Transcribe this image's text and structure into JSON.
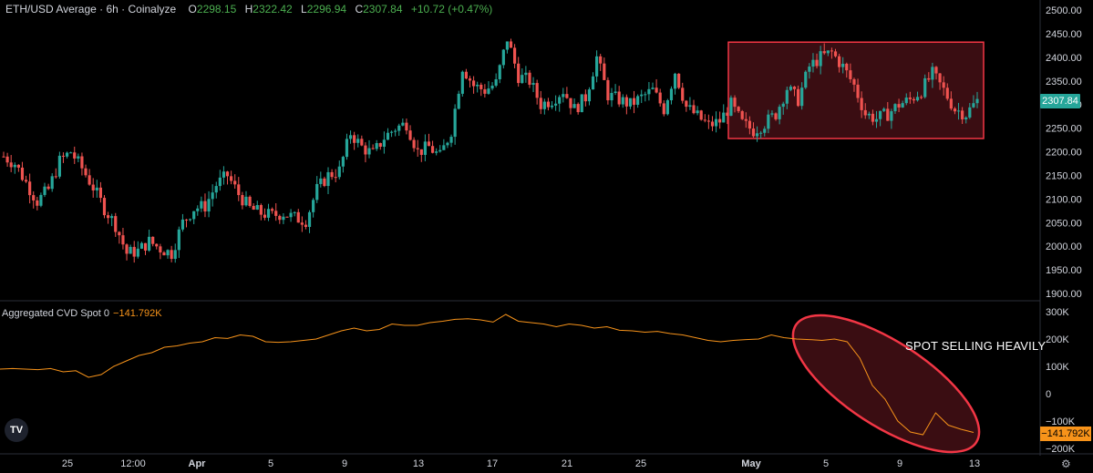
{
  "header": {
    "title": "ETH/USD Average · 6h · Coinalyze",
    "open_label": "O",
    "open": "2298.15",
    "high_label": "H",
    "high": "2322.42",
    "low_label": "L",
    "low": "2296.94",
    "close_label": "C",
    "close": "2307.84",
    "change": "+10.72 (+0.47%)"
  },
  "indicator": {
    "name": "Aggregated CVD Spot 0",
    "value": "−141.792K"
  },
  "price_tag": "2307.84",
  "cvd_tag": "−141.792K",
  "annotation": "SPOT SELLING HEAVILY",
  "logo_text": "TV",
  "icons": {
    "settings": "gear-icon",
    "logo": "tradingview-logo-icon"
  },
  "colors": {
    "up": "#26a69a",
    "down": "#ef5350",
    "cvd": "#f7931a",
    "highlight": "#f23645",
    "bg": "#000000"
  },
  "chart_data": [
    {
      "type": "candlestick",
      "title": "ETH/USD Average · 6h · Coinalyze",
      "ylim": [
        1880,
        2510
      ],
      "y_ticks": [
        "2500.00",
        "2450.00",
        "2400.00",
        "2350.00",
        "2300.00",
        "2250.00",
        "2200.00",
        "2150.00",
        "2100.00",
        "2050.00",
        "2000.00",
        "1950.00",
        "1900.00"
      ],
      "x_ticks": [
        "25",
        "12:00",
        "Apr",
        "5",
        "9",
        "13",
        "17",
        "21",
        "25",
        "May",
        "5",
        "9",
        "13"
      ],
      "close_path": [
        2190,
        2175,
        2135,
        2095,
        2120,
        2180,
        2200,
        2165,
        2125,
        2080,
        2045,
        1985,
        1990,
        2010,
        1995,
        1985,
        2050,
        2080,
        2085,
        2130,
        2150,
        2110,
        2080,
        2070,
        2065,
        2070,
        2060,
        2055,
        2120,
        2150,
        2160,
        2240,
        2210,
        2195,
        2230,
        2250,
        2260,
        2200,
        2210,
        2190,
        2245,
        2380,
        2340,
        2330,
        2345,
        2440,
        2360,
        2350,
        2300,
        2310,
        2330,
        2290,
        2315,
        2400,
        2320,
        2310,
        2300,
        2315,
        2330,
        2290,
        2370,
        2295,
        2275,
        2255,
        2265,
        2300,
        2260,
        2245,
        2260,
        2280,
        2335,
        2310,
        2380,
        2400,
        2410,
        2380,
        2340,
        2280,
        2270,
        2280,
        2300,
        2310,
        2330,
        2365,
        2330,
        2290,
        2280,
        2307.84
      ],
      "last_price": 2307.84,
      "highlight_range": {
        "price_low": 2228,
        "price_high": 2432,
        "from_date": "May 1",
        "to_date": "May 14"
      }
    },
    {
      "type": "line",
      "title": "Aggregated CVD Spot 0",
      "ylim": [
        -220000,
        310000
      ],
      "y_ticks": [
        "300K",
        "200K",
        "100K",
        "0",
        "−100K",
        "−200K"
      ],
      "series": [
        {
          "values": [
            90000,
            92000,
            90000,
            88000,
            92000,
            80000,
            84000,
            60000,
            70000,
            100000,
            120000,
            140000,
            150000,
            170000,
            175000,
            185000,
            190000,
            205000,
            202000,
            215000,
            210000,
            190000,
            188000,
            190000,
            195000,
            200000,
            215000,
            230000,
            240000,
            230000,
            235000,
            255000,
            250000,
            250000,
            260000,
            265000,
            272000,
            274000,
            270000,
            262000,
            290000,
            265000,
            260000,
            255000,
            245000,
            255000,
            250000,
            240000,
            245000,
            232000,
            230000,
            225000,
            228000,
            220000,
            215000,
            205000,
            195000,
            190000,
            195000,
            198000,
            200000,
            215000,
            205000,
            200000,
            198000,
            195000,
            200000,
            190000,
            130000,
            30000,
            -20000,
            -100000,
            -140000,
            -150000,
            -70000,
            -115000,
            -130000,
            -141792
          ],
          "last_value": -141792
        }
      ],
      "annotation": "SPOT SELLING HEAVILY"
    }
  ]
}
